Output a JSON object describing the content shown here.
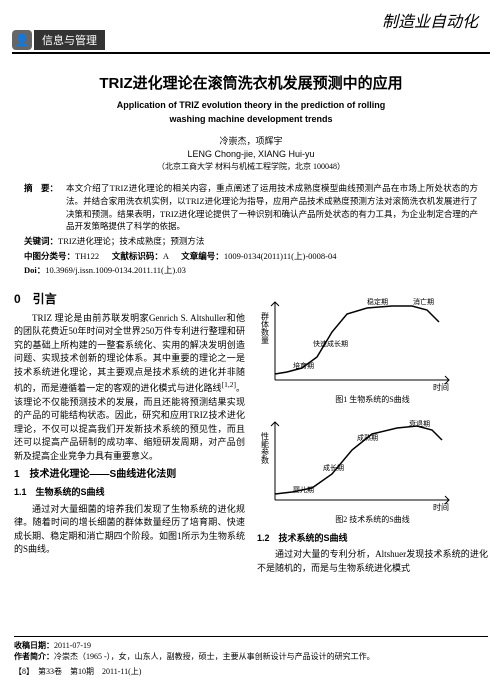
{
  "header": {
    "journal_title": "制造业自动化",
    "section_banner": "信息与管理",
    "banner_icon": "👤"
  },
  "title": {
    "cn": "TRIZ进化理论在滚筒洗衣机发展预测中的应用",
    "en_line1": "Application of TRIZ evolution theory in the prediction of rolling",
    "en_line2": "washing machine development trends"
  },
  "authors": {
    "cn": "冷崇杰，项辉宇",
    "en": "LENG Chong-jie, XIANG Hui-yu",
    "affiliation": "（北京工商大学 材料与机械工程学院，北京 100048）"
  },
  "abstract": {
    "label": "摘　要：",
    "text": "本文介绍了TRIZ进化理论的相关内容，重点阐述了运用技术成熟度模型曲线预测产品在市场上所处状态的方法。并结合家用洗衣机实例，以TRIZ进化理论为指导，应用产品技术成熟度预测方法对滚筒洗衣机发展进行了决策和预测。结果表明，TRIZ进化理论提供了一种识别和确认产品所处状态的有力工具，为企业制定合理的产品开发策略提供了科学的依据。"
  },
  "keywords": {
    "label": "关键词：",
    "text": "TRIZ进化理论；技术成熟度；预测方法"
  },
  "clc": {
    "label": "中图分类号：",
    "value": "TH122"
  },
  "doccode": {
    "label": "文献标识码：",
    "value": "A"
  },
  "articleid": {
    "label": "文章编号：",
    "value": "1009-0134(2011)11(上)-0008-04"
  },
  "doi": {
    "label": "Doi：",
    "value": "10.3969/j.issn.1009-0134.2011.11(上).03"
  },
  "sections": {
    "intro_h": "0　引言",
    "intro_p1": "TRIZ 理论是由前苏联发明家Genrich S. Altshuller和他的团队花费近50年时间对全世界250万件专利进行整理和研究的基础上所构建的一整套系统化、实用的解决发明创造问题、实现技术创新的理论体系。其中重要的理论之一是技术系统进化理论，其主要观点是技术系统的进化并非随机的，而是遵循着一定的客观的进化模式与进化路线",
    "intro_ref": "[1,2]",
    "intro_p1b": "。该理论不仅能预测技术的发展，而且还能将预测结果实现的产品的可能结构状态。因此，研究和应用TRIZ技术进化理论，不仅可以提高我们开发新技术系统的预见性，而且还可以提高产品研制的成功率、缩短研发周期，对产品创新及提高企业竞争力具有重要意义。",
    "tech_h": "1　技术进化理论——S曲线进化法则",
    "bio_h": "1.1　生物系统的S曲线",
    "bio_p": "通过对大量细菌的培养我们发现了生物系统的进化规律。随着时间的增长细菌的群体数量经历了培育期、快速成长期、稳定期和消亡期四个阶段。如图1所示为生物系统的S曲线。",
    "tech_sys_h": "1.2　技术系统的S曲线",
    "tech_p": "通过对大量的专利分析，Altshuer发现技术系统的进化不是随机的，而是与生物系统进化模式"
  },
  "charts": {
    "bio": {
      "title": "图1 生物系统的S曲线",
      "y_label": "群体数量",
      "x_label": "时间",
      "labels": {
        "incubation": "培育期",
        "growth": "快速成长期",
        "stable": "稳定期",
        "decline": "消亡期"
      },
      "curve_color": "#000",
      "axis_color": "#000",
      "points": [
        [
          18,
          82
        ],
        [
          30,
          80
        ],
        [
          45,
          76
        ],
        [
          60,
          65
        ],
        [
          75,
          40
        ],
        [
          90,
          22
        ],
        [
          110,
          16
        ],
        [
          135,
          14
        ],
        [
          155,
          14
        ],
        [
          170,
          18
        ],
        [
          182,
          30
        ]
      ]
    },
    "tech": {
      "title": "图2 技术系统的S曲线",
      "y_label": "性能参数",
      "x_label": "时间",
      "labels": {
        "infant": "婴儿期",
        "growth": "成长期",
        "mature": "成熟期",
        "decline": "衰退期"
      },
      "curve_color": "#000",
      "axis_color": "#000",
      "points": [
        [
          18,
          82
        ],
        [
          35,
          80
        ],
        [
          55,
          76
        ],
        [
          75,
          62
        ],
        [
          95,
          38
        ],
        [
          115,
          22
        ],
        [
          140,
          16
        ],
        [
          160,
          14
        ],
        [
          175,
          18
        ],
        [
          185,
          28
        ]
      ]
    }
  },
  "footer": {
    "received_label": "收稿日期：",
    "received": "2011-07-19",
    "author_label": "作者简介：",
    "author_info": "冷崇杰（1965 -），女，山东人，副教授，硕士，主要从事创新设计与产品设计的研究工作。",
    "page_left": "【8】　第33卷　第10期　2011-11(上)"
  }
}
